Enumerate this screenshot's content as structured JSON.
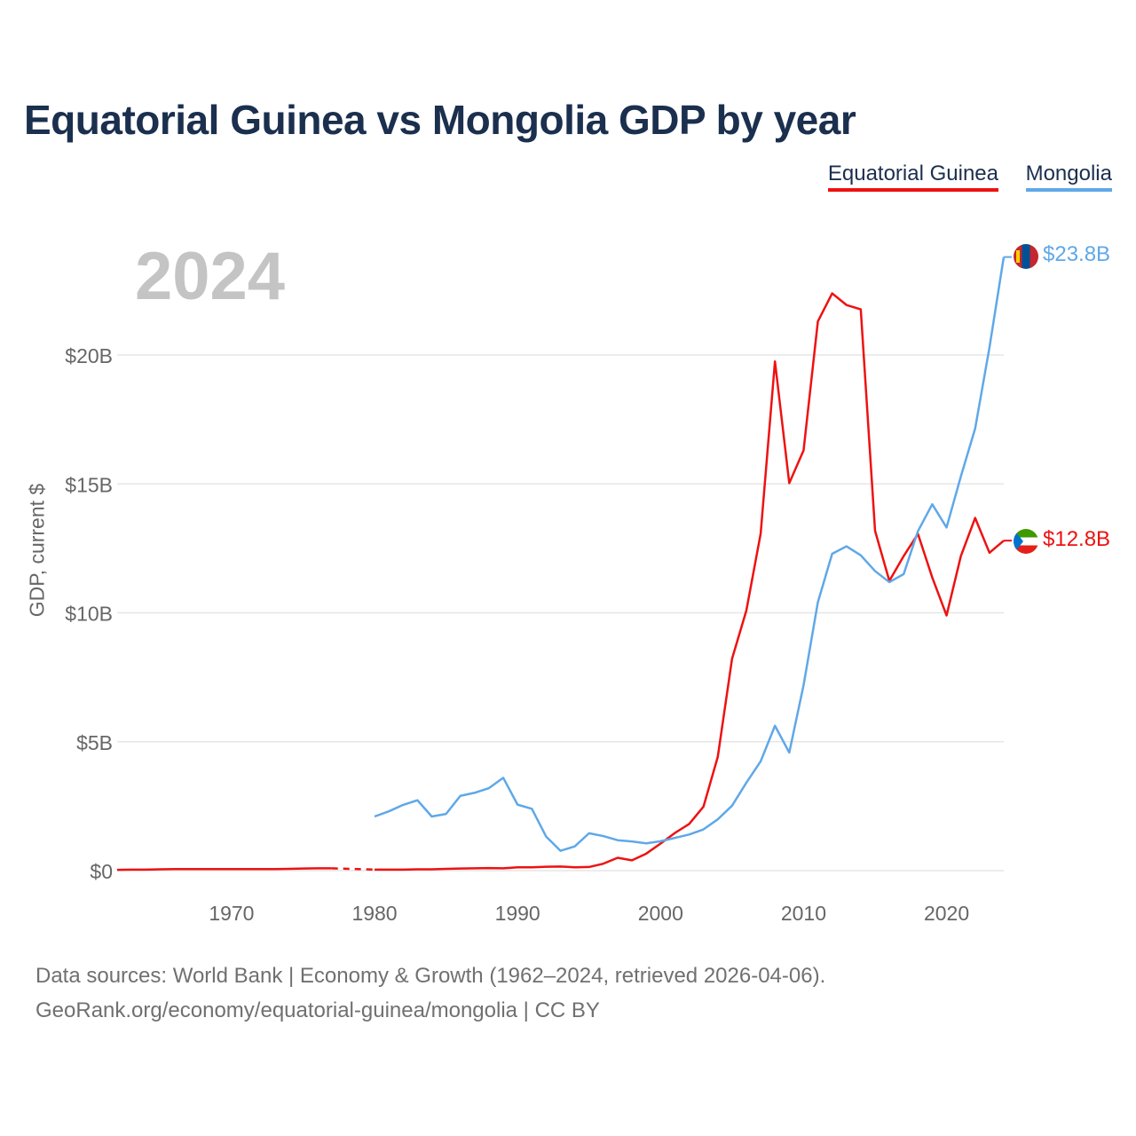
{
  "chart_data": {
    "type": "line",
    "title": "Equatorial Guinea vs Mongolia GDP by year",
    "highlight_year": "2024",
    "xlabel": "",
    "ylabel": "GDP, current $",
    "xlim": [
      1962,
      2024
    ],
    "ylim": [
      0,
      24
    ],
    "x_ticks": [
      1970,
      1980,
      1990,
      2000,
      2010,
      2020
    ],
    "y_ticks": [
      0,
      5,
      10,
      15,
      20
    ],
    "y_tick_labels": [
      "$0",
      "$5B",
      "$10B",
      "$15B",
      "$20B"
    ],
    "grid": true,
    "legend_position": "top-right",
    "series": [
      {
        "name": "Equatorial Guinea",
        "color": "#ee1111",
        "end_label": "$12.8B",
        "flag": "equatorial-guinea-flag",
        "gap": [
          1977,
          1980
        ],
        "x": [
          1962,
          1963,
          1964,
          1965,
          1966,
          1967,
          1968,
          1969,
          1970,
          1971,
          1972,
          1973,
          1974,
          1975,
          1976,
          1977,
          1980,
          1981,
          1982,
          1983,
          1984,
          1985,
          1986,
          1987,
          1988,
          1989,
          1990,
          1991,
          1992,
          1993,
          1994,
          1995,
          1996,
          1997,
          1998,
          1999,
          2000,
          2001,
          2002,
          2003,
          2004,
          2005,
          2006,
          2007,
          2008,
          2009,
          2010,
          2011,
          2012,
          2013,
          2014,
          2015,
          2016,
          2017,
          2018,
          2019,
          2020,
          2021,
          2022,
          2023,
          2024
        ],
        "values": [
          0.03,
          0.04,
          0.04,
          0.05,
          0.06,
          0.06,
          0.06,
          0.06,
          0.06,
          0.06,
          0.06,
          0.06,
          0.07,
          0.08,
          0.09,
          0.09,
          0.04,
          0.04,
          0.04,
          0.05,
          0.05,
          0.07,
          0.08,
          0.09,
          0.1,
          0.09,
          0.13,
          0.13,
          0.15,
          0.16,
          0.13,
          0.14,
          0.27,
          0.5,
          0.4,
          0.66,
          1.05,
          1.46,
          1.81,
          2.48,
          4.41,
          8.22,
          10.09,
          13.07,
          19.75,
          15.03,
          16.3,
          21.3,
          22.39,
          21.94,
          21.77,
          13.18,
          11.24,
          12.2,
          13.06,
          11.37,
          9.9,
          12.2,
          13.68,
          12.33,
          12.8
        ]
      },
      {
        "name": "Mongolia",
        "color": "#5fa8e8",
        "end_label": "$23.8B",
        "flag": "mongolia-flag",
        "x": [
          1980,
          1981,
          1982,
          1983,
          1984,
          1985,
          1986,
          1987,
          1988,
          1989,
          1990,
          1991,
          1992,
          1993,
          1994,
          1995,
          1996,
          1997,
          1998,
          1999,
          2000,
          2001,
          2002,
          2003,
          2004,
          2005,
          2006,
          2007,
          2008,
          2009,
          2010,
          2011,
          2012,
          2013,
          2014,
          2015,
          2016,
          2017,
          2018,
          2019,
          2020,
          2021,
          2022,
          2023,
          2024
        ],
        "values": [
          2.1,
          2.3,
          2.55,
          2.73,
          2.1,
          2.2,
          2.9,
          3.02,
          3.2,
          3.6,
          2.56,
          2.4,
          1.32,
          0.77,
          0.94,
          1.45,
          1.34,
          1.18,
          1.13,
          1.06,
          1.14,
          1.27,
          1.4,
          1.6,
          1.99,
          2.52,
          3.41,
          4.24,
          5.62,
          4.58,
          7.19,
          10.41,
          12.29,
          12.58,
          12.23,
          11.62,
          11.19,
          11.5,
          13.17,
          14.21,
          13.31,
          15.29,
          17.15,
          20.29,
          23.8
        ]
      }
    ]
  },
  "footer": {
    "source": "Data sources: World Bank | Economy & Growth (1962–2024, retrieved 2026-04-06).",
    "credit": "GeoRank.org/economy/equatorial-guinea/mongolia | CC BY"
  }
}
